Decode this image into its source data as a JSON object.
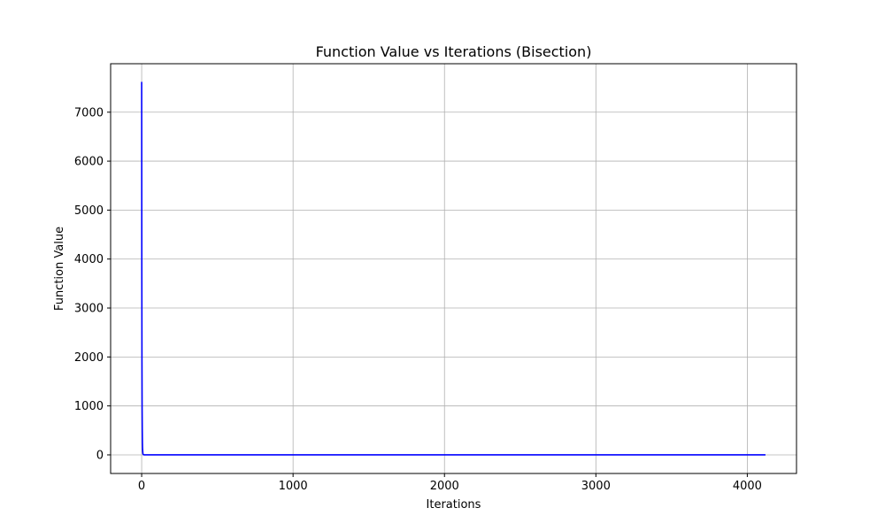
{
  "chart_data": {
    "type": "line",
    "title": "Function Value vs Iterations (Bisection)",
    "xlabel": "Iterations",
    "ylabel": "Function Value",
    "xlim": [
      -205,
      4325
    ],
    "ylim": [
      -380,
      7990
    ],
    "xticks": [
      0,
      1000,
      2000,
      3000,
      4000
    ],
    "yticks": [
      0,
      1000,
      2000,
      3000,
      4000,
      5000,
      6000,
      7000
    ],
    "grid": true,
    "series": [
      {
        "color": "#0000ff",
        "x": [
          0,
          1,
          2,
          3,
          4,
          5,
          6,
          8,
          10,
          15,
          20,
          30,
          50,
          100,
          500,
          1000,
          2000,
          3000,
          4000,
          4120
        ],
        "y": [
          7620,
          3800,
          1900,
          950,
          480,
          240,
          120,
          30,
          8,
          1,
          0,
          0,
          0,
          0,
          0,
          0,
          0,
          0,
          0,
          0
        ]
      }
    ]
  }
}
